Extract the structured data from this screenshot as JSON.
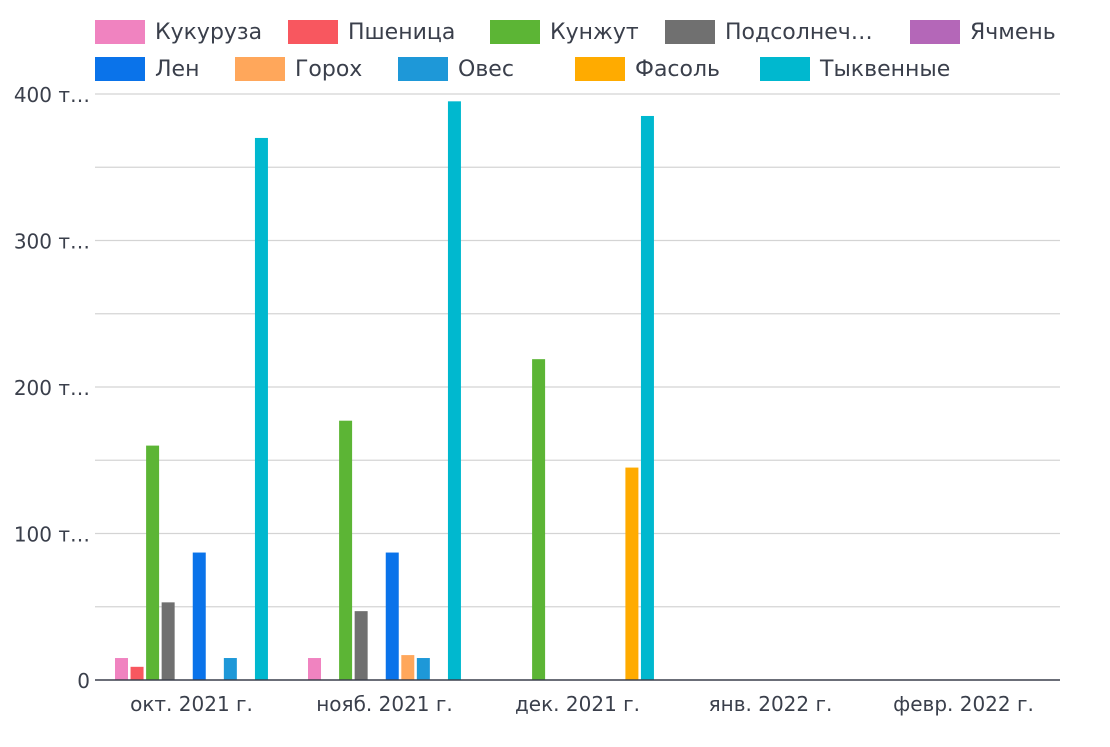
{
  "chart_data": {
    "type": "bar",
    "categories": [
      "окт. 2021 г.",
      "нояб. 2021 г.",
      "дек. 2021 г.",
      "янв. 2022 г.",
      "февр. 2022 г."
    ],
    "y_ticks": [
      "0",
      "100 т…",
      "200 т…",
      "300 т…",
      "400 т…"
    ],
    "ylim": [
      0,
      400000
    ],
    "grid": true,
    "legend_position": "top",
    "series": [
      {
        "name": "Кукуруза",
        "color": "#f083c0",
        "values": [
          15000,
          15000,
          0,
          0,
          0
        ]
      },
      {
        "name": "Пшеница",
        "color": "#f8575f",
        "values": [
          9000,
          0,
          0,
          0,
          0
        ]
      },
      {
        "name": "Кунжут",
        "color": "#5cb535",
        "values": [
          160000,
          177000,
          219000,
          0,
          0
        ]
      },
      {
        "name": "Подсолнеч…",
        "color": "#707070",
        "values": [
          53000,
          47000,
          0,
          0,
          0
        ]
      },
      {
        "name": "Ячмень",
        "color": "#b467b8",
        "values": [
          0,
          0,
          0,
          0,
          0
        ]
      },
      {
        "name": "Лен",
        "color": "#0a73ea",
        "values": [
          87000,
          87000,
          0,
          0,
          0
        ]
      },
      {
        "name": "Горох",
        "color": "#ffa75b",
        "values": [
          0,
          17000,
          0,
          0,
          0
        ]
      },
      {
        "name": "Овес",
        "color": "#1e98d8",
        "values": [
          15000,
          15000,
          0,
          0,
          0
        ]
      },
      {
        "name": "Фасоль",
        "color": "#ffab00",
        "values": [
          0,
          0,
          145000,
          0,
          0
        ]
      },
      {
        "name": "Тыквенные",
        "color": "#00b8cf",
        "values": [
          370000,
          395000,
          385000,
          0,
          0
        ]
      }
    ]
  }
}
